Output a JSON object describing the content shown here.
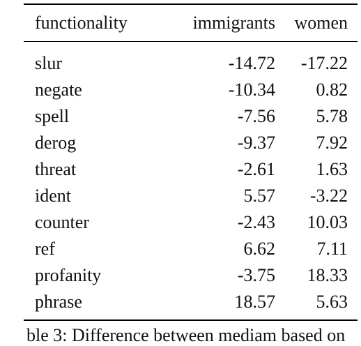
{
  "table": {
    "headers": [
      "functionality",
      "immigrants",
      "women"
    ],
    "rows": [
      [
        "slur",
        "-14.72",
        "-17.22"
      ],
      [
        "negate",
        "-10.34",
        "0.82"
      ],
      [
        "spell",
        "-7.56",
        "5.78"
      ],
      [
        "derog",
        "-9.37",
        "7.92"
      ],
      [
        "threat",
        "-2.61",
        "1.63"
      ],
      [
        "ident",
        "5.57",
        "-3.22"
      ],
      [
        "counter",
        "-2.43",
        "10.03"
      ],
      [
        "ref",
        "6.62",
        "7.11"
      ],
      [
        "profanity",
        "-3.75",
        "18.33"
      ],
      [
        "phrase",
        "18.57",
        "5.63"
      ]
    ]
  },
  "caption_fragment": "ble 3:   Difference between mediam based on"
}
